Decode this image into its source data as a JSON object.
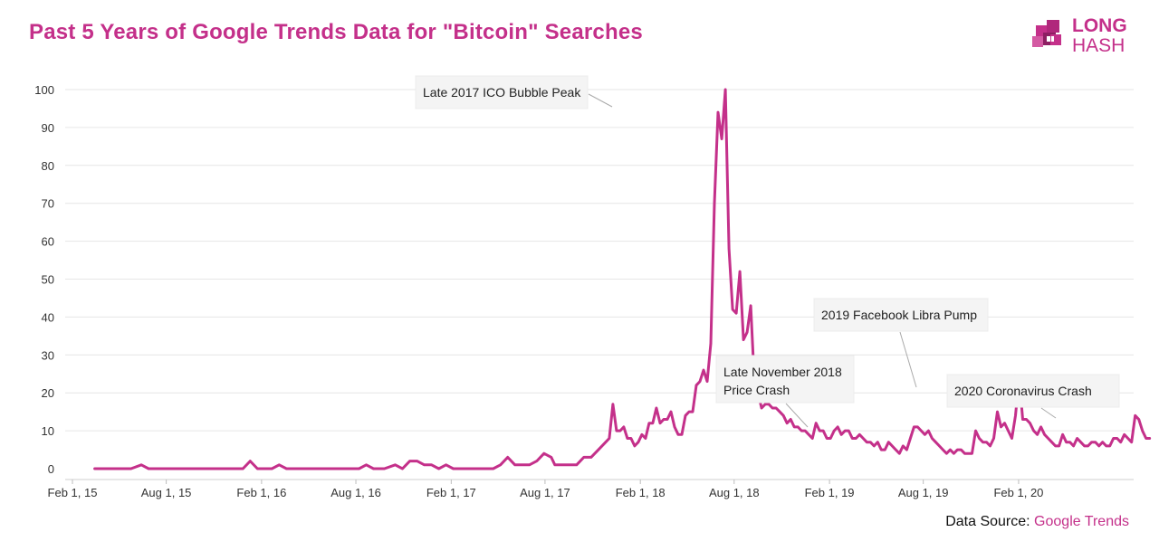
{
  "title": "Past 5 Years of Google Trends Data for \"Bitcoin\" Searches",
  "logo": {
    "line1": "LONG",
    "line2": "HASH"
  },
  "source": {
    "label": "Data Source:",
    "link": "Google Trends"
  },
  "colors": {
    "accent": "#c4308a",
    "line": "#c4308a",
    "grid": "#e6e6e6"
  },
  "chart_data": {
    "type": "line",
    "title": "Past 5 Years of Google Trends Data for \"Bitcoin\" Searches",
    "xlabel": "",
    "ylabel": "",
    "ylim": [
      0,
      100
    ],
    "yticks": [
      0,
      10,
      20,
      30,
      40,
      50,
      60,
      70,
      80,
      90,
      100
    ],
    "xlim": [
      "2015-01-18",
      "2020-09-10"
    ],
    "xticks": [
      {
        "date": "2015-02-01",
        "label": "Feb 1, 15"
      },
      {
        "date": "2015-08-01",
        "label": "Aug 1, 15"
      },
      {
        "date": "2016-02-01",
        "label": "Feb 1, 16"
      },
      {
        "date": "2016-08-01",
        "label": "Aug 1, 16"
      },
      {
        "date": "2017-02-01",
        "label": "Feb 1, 17"
      },
      {
        "date": "2017-08-01",
        "label": "Aug 1, 17"
      },
      {
        "date": "2018-02-01",
        "label": "Feb 1, 18"
      },
      {
        "date": "2018-08-01",
        "label": "Aug 1, 18"
      },
      {
        "date": "2019-02-01",
        "label": "Feb 1, 19"
      },
      {
        "date": "2019-08-01",
        "label": "Aug 1, 19"
      },
      {
        "date": "2020-02-01",
        "label": "Feb 1, 20"
      }
    ],
    "grid": true,
    "series": [
      {
        "points": [
          [
            "2015-03-16",
            0
          ],
          [
            "2015-04-20",
            0
          ],
          [
            "2015-05-25",
            0
          ],
          [
            "2015-06-14",
            1
          ],
          [
            "2015-06-28",
            0
          ],
          [
            "2015-08-01",
            0
          ],
          [
            "2015-09-13",
            0
          ],
          [
            "2015-10-25",
            0
          ],
          [
            "2015-12-06",
            0
          ],
          [
            "2015-12-27",
            0
          ],
          [
            "2016-01-10",
            2
          ],
          [
            "2016-01-24",
            0
          ],
          [
            "2016-02-21",
            0
          ],
          [
            "2016-03-06",
            1
          ],
          [
            "2016-03-20",
            0
          ],
          [
            "2016-05-01",
            0
          ],
          [
            "2016-06-12",
            0
          ],
          [
            "2016-07-10",
            0
          ],
          [
            "2016-08-07",
            0
          ],
          [
            "2016-08-21",
            1
          ],
          [
            "2016-09-04",
            0
          ],
          [
            "2016-09-25",
            0
          ],
          [
            "2016-10-16",
            1
          ],
          [
            "2016-10-30",
            0
          ],
          [
            "2016-11-13",
            2
          ],
          [
            "2016-11-27",
            2
          ],
          [
            "2016-12-11",
            1
          ],
          [
            "2016-12-25",
            1
          ],
          [
            "2017-01-08",
            0
          ],
          [
            "2017-01-22",
            1
          ],
          [
            "2017-02-05",
            0
          ],
          [
            "2017-03-05",
            0
          ],
          [
            "2017-04-02",
            0
          ],
          [
            "2017-04-23",
            0
          ],
          [
            "2017-05-07",
            1
          ],
          [
            "2017-05-21",
            3
          ],
          [
            "2017-06-04",
            1
          ],
          [
            "2017-06-18",
            1
          ],
          [
            "2017-07-02",
            1
          ],
          [
            "2017-07-16",
            2
          ],
          [
            "2017-07-30",
            4
          ],
          [
            "2017-08-13",
            3
          ],
          [
            "2017-08-20",
            1
          ],
          [
            "2017-09-03",
            1
          ],
          [
            "2017-09-17",
            1
          ],
          [
            "2017-10-01",
            1
          ],
          [
            "2017-10-15",
            3
          ],
          [
            "2017-10-29",
            3
          ],
          [
            "2017-11-12",
            5
          ],
          [
            "2017-11-26",
            7
          ],
          [
            "2017-12-03",
            8
          ],
          [
            "2017-12-10",
            17
          ],
          [
            "2017-12-17",
            10
          ],
          [
            "2017-12-24",
            10
          ],
          [
            "2017-12-31",
            11
          ],
          [
            "2018-01-07",
            8
          ],
          [
            "2018-01-14",
            8
          ],
          [
            "2018-01-21",
            6
          ],
          [
            "2018-01-28",
            7
          ],
          [
            "2018-02-04",
            9
          ],
          [
            "2018-02-11",
            8
          ],
          [
            "2018-02-18",
            12
          ],
          [
            "2018-02-25",
            12
          ],
          [
            "2018-03-04",
            16
          ],
          [
            "2018-03-11",
            12
          ],
          [
            "2018-03-18",
            13
          ],
          [
            "2018-03-25",
            13
          ],
          [
            "2018-04-01",
            15
          ],
          [
            "2018-04-08",
            11
          ],
          [
            "2018-04-15",
            9
          ],
          [
            "2018-04-22",
            9
          ],
          [
            "2018-04-29",
            14
          ],
          [
            "2018-05-06",
            15
          ],
          [
            "2018-05-13",
            15
          ],
          [
            "2018-05-20",
            22
          ],
          [
            "2018-05-27",
            23
          ],
          [
            "2018-06-03",
            26
          ],
          [
            "2018-06-10",
            23
          ],
          [
            "2018-06-17",
            33
          ],
          [
            "2018-06-24",
            70
          ],
          [
            "2018-07-01",
            94
          ],
          [
            "2018-07-08",
            87
          ],
          [
            "2018-07-15",
            100
          ],
          [
            "2018-07-22",
            58
          ],
          [
            "2018-07-29",
            42
          ],
          [
            "2018-08-05",
            41
          ],
          [
            "2018-08-12",
            52
          ],
          [
            "2018-08-19",
            34
          ],
          [
            "2018-08-26",
            36
          ],
          [
            "2018-09-02",
            43
          ],
          [
            "2018-09-09",
            23
          ],
          [
            "2018-09-16",
            20
          ],
          [
            "2018-09-23",
            16
          ],
          [
            "2018-09-30",
            17
          ],
          [
            "2018-10-07",
            17
          ],
          [
            "2018-10-14",
            16
          ],
          [
            "2018-10-21",
            16
          ],
          [
            "2018-10-28",
            15
          ],
          [
            "2018-11-04",
            14
          ],
          [
            "2018-11-11",
            12
          ],
          [
            "2018-11-18",
            13
          ],
          [
            "2018-11-25",
            11
          ],
          [
            "2018-12-02",
            11
          ],
          [
            "2018-12-09",
            10
          ],
          [
            "2018-12-16",
            10
          ],
          [
            "2018-12-23",
            9
          ],
          [
            "2018-12-30",
            8
          ],
          [
            "2019-01-06",
            12
          ],
          [
            "2019-01-13",
            10
          ],
          [
            "2019-01-20",
            10
          ],
          [
            "2019-01-27",
            8
          ],
          [
            "2019-02-03",
            8
          ],
          [
            "2019-02-10",
            10
          ],
          [
            "2019-02-17",
            11
          ],
          [
            "2019-02-24",
            9
          ],
          [
            "2019-03-03",
            10
          ],
          [
            "2019-03-10",
            10
          ],
          [
            "2019-03-17",
            8
          ],
          [
            "2019-03-24",
            8
          ],
          [
            "2019-03-31",
            9
          ],
          [
            "2019-04-07",
            8
          ],
          [
            "2019-04-14",
            7
          ],
          [
            "2019-04-21",
            7
          ],
          [
            "2019-04-28",
            6
          ],
          [
            "2019-05-05",
            7
          ],
          [
            "2019-05-12",
            5
          ],
          [
            "2019-05-19",
            5
          ],
          [
            "2019-05-26",
            7
          ],
          [
            "2019-06-02",
            6
          ],
          [
            "2019-06-09",
            5
          ],
          [
            "2019-06-16",
            4
          ],
          [
            "2019-06-23",
            6
          ],
          [
            "2019-06-30",
            5
          ],
          [
            "2019-07-07",
            8
          ],
          [
            "2019-07-14",
            11
          ],
          [
            "2019-07-21",
            11
          ],
          [
            "2019-07-28",
            10
          ],
          [
            "2019-08-04",
            9
          ],
          [
            "2019-08-11",
            10
          ],
          [
            "2019-08-18",
            8
          ],
          [
            "2019-08-25",
            7
          ],
          [
            "2019-09-01",
            6
          ],
          [
            "2019-09-08",
            5
          ],
          [
            "2019-09-15",
            4
          ],
          [
            "2019-09-22",
            5
          ],
          [
            "2019-09-29",
            4
          ],
          [
            "2019-10-06",
            5
          ],
          [
            "2019-10-13",
            5
          ],
          [
            "2019-10-20",
            4
          ],
          [
            "2019-10-27",
            4
          ],
          [
            "2019-11-03",
            4
          ],
          [
            "2019-11-10",
            10
          ],
          [
            "2019-11-17",
            8
          ],
          [
            "2019-11-24",
            7
          ],
          [
            "2019-12-01",
            7
          ],
          [
            "2019-12-08",
            6
          ],
          [
            "2019-12-15",
            8
          ],
          [
            "2019-12-22",
            15
          ],
          [
            "2019-12-29",
            11
          ],
          [
            "2020-01-05",
            12
          ],
          [
            "2020-01-12",
            10
          ],
          [
            "2020-01-19",
            8
          ],
          [
            "2020-01-26",
            14
          ],
          [
            "2020-02-02",
            24
          ],
          [
            "2020-02-09",
            13
          ],
          [
            "2020-02-16",
            13
          ],
          [
            "2020-02-23",
            12
          ],
          [
            "2020-03-01",
            10
          ],
          [
            "2020-03-08",
            9
          ],
          [
            "2020-03-15",
            11
          ],
          [
            "2020-03-22",
            9
          ],
          [
            "2020-03-29",
            8
          ],
          [
            "2020-04-05",
            7
          ],
          [
            "2020-04-12",
            6
          ],
          [
            "2020-04-19",
            6
          ],
          [
            "2020-04-26",
            9
          ],
          [
            "2020-05-03",
            7
          ],
          [
            "2020-05-10",
            7
          ],
          [
            "2020-05-17",
            6
          ],
          [
            "2020-05-24",
            8
          ],
          [
            "2020-05-31",
            7
          ],
          [
            "2020-06-07",
            6
          ],
          [
            "2020-06-14",
            6
          ],
          [
            "2020-06-21",
            7
          ],
          [
            "2020-06-28",
            7
          ],
          [
            "2020-07-05",
            6
          ],
          [
            "2020-07-12",
            7
          ],
          [
            "2020-07-19",
            6
          ],
          [
            "2020-07-26",
            6
          ],
          [
            "2020-08-02",
            8
          ],
          [
            "2020-08-09",
            8
          ],
          [
            "2020-08-16",
            7
          ],
          [
            "2020-08-23",
            9
          ],
          [
            "2020-08-30",
            8
          ],
          [
            "2020-09-06",
            7
          ],
          [
            "2020-09-13",
            14
          ],
          [
            "2020-09-20",
            13
          ],
          [
            "2020-09-27",
            10
          ],
          [
            "2020-10-04",
            8
          ],
          [
            "2020-10-11",
            8
          ]
        ]
      }
    ],
    "annotations": [
      {
        "lines": [
          "Late 2017 ICO Bubble Peak"
        ]
      },
      {
        "lines": [
          "Late November 2018",
          "Price Crash"
        ]
      },
      {
        "lines": [
          "2019 Facebook Libra Pump"
        ]
      },
      {
        "lines": [
          "2020 Coronavirus Crash"
        ]
      }
    ]
  }
}
